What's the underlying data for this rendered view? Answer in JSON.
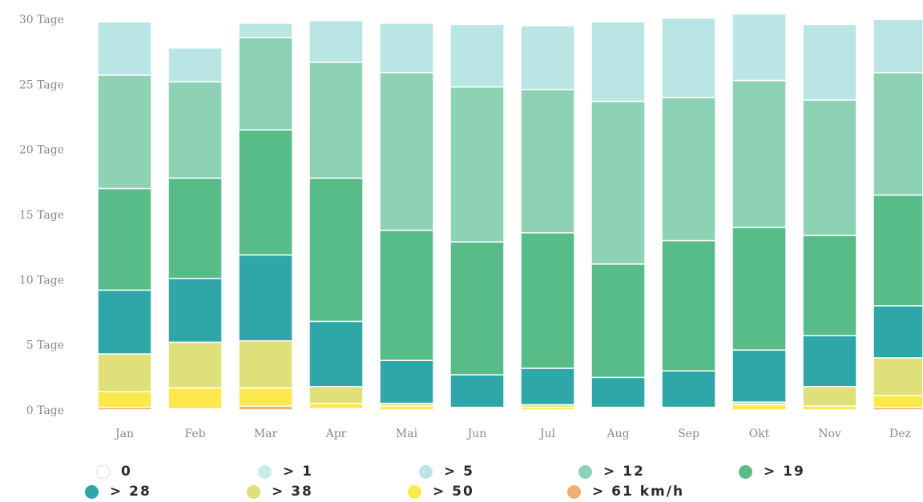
{
  "chart_data": {
    "type": "bar",
    "stacked": true,
    "categories": [
      "Jan",
      "Feb",
      "Mar",
      "Apr",
      "Mai",
      "Jun",
      "Jul",
      "Aug",
      "Sep",
      "Okt",
      "Nov",
      "Dez"
    ],
    "ylim": [
      0,
      30
    ],
    "yticks": [
      0,
      5,
      10,
      15,
      20,
      25,
      30
    ],
    "ytick_labels": [
      "0 Tage",
      "5 Tage",
      "10 Tage",
      "15 Tage",
      "20 Tage",
      "25 Tage",
      "30 Tage"
    ],
    "grid": false,
    "legend_position": "bottom",
    "series": [
      {
        "name": "0",
        "color": "#ffffff",
        "values": [
          0,
          0,
          0,
          0,
          0,
          0,
          0,
          0,
          0,
          0,
          0,
          0
        ]
      },
      {
        "name": "> 61 km/h",
        "color": "#f0b074",
        "values": [
          0.2,
          0.1,
          0.3,
          0.1,
          0,
          0,
          0,
          0,
          0,
          0,
          0,
          0.2
        ]
      },
      {
        "name": "> 50",
        "color": "#fbe84a",
        "values": [
          1.2,
          1.6,
          1.4,
          0.4,
          0.3,
          0.1,
          0.2,
          0.1,
          0.1,
          0.4,
          0.3,
          0.9
        ]
      },
      {
        "name": "> 38",
        "color": "#dfe07a",
        "values": [
          2.9,
          3.5,
          3.6,
          1.3,
          0.2,
          0.1,
          0.2,
          0.1,
          0.1,
          0.2,
          1.5,
          2.9
        ]
      },
      {
        "name": "> 28",
        "color": "#2fa6a8",
        "values": [
          4.9,
          4.9,
          6.6,
          5.0,
          3.3,
          2.5,
          2.8,
          2.3,
          2.8,
          4.0,
          3.9,
          4.0
        ]
      },
      {
        "name": "> 19",
        "color": "#57bc87",
        "values": [
          7.8,
          7.7,
          9.6,
          11.0,
          10.0,
          10.2,
          10.4,
          8.7,
          10.0,
          9.4,
          7.7,
          8.5
        ]
      },
      {
        "name": "> 12",
        "color": "#8dd2b5",
        "values": [
          8.7,
          7.4,
          7.1,
          8.9,
          12.1,
          11.9,
          11.0,
          12.5,
          11.0,
          11.3,
          10.4,
          9.4
        ]
      },
      {
        "name": "> 5",
        "color": "#b9e6e4",
        "values": [
          4.1,
          2.6,
          1.1,
          3.2,
          3.8,
          4.8,
          4.9,
          6.1,
          6.1,
          5.1,
          5.8,
          4.1
        ]
      },
      {
        "name": "> 1",
        "color": "#c8ecec",
        "values": [
          0,
          0,
          0,
          0,
          0,
          0,
          0,
          0,
          0,
          0,
          0,
          0
        ]
      }
    ]
  },
  "legend": [
    {
      "label": "0",
      "color": "#ffffff"
    },
    {
      "label": "> 1",
      "color": "#c8ecec"
    },
    {
      "label": "> 5",
      "color": "#b9e6e4"
    },
    {
      "label": "> 12",
      "color": "#8dd2b5"
    },
    {
      "label": "> 19",
      "color": "#57bc87"
    },
    {
      "label": "> 28",
      "color": "#2fa6a8"
    },
    {
      "label": "> 38",
      "color": "#dfe07a"
    },
    {
      "label": "> 50",
      "color": "#fbe84a"
    },
    {
      "label": "> 61 km/h",
      "color": "#f0b074"
    }
  ]
}
